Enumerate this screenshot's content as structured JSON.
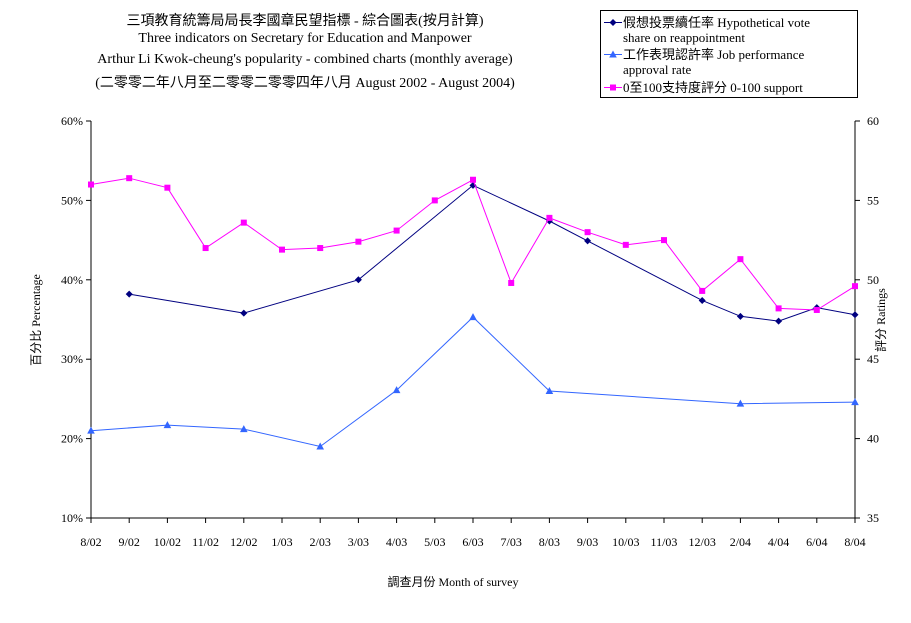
{
  "titles": {
    "line1": "三項教育統籌局局長李國章民望指標 - 綜合圖表(按月計算)",
    "line2": "Three indicators on Secretary for Education and Manpower",
    "line3": "Arthur Li Kwok-cheung's popularity - combined charts (monthly average)",
    "line4": "(二零零二年八月至二零零二零零四年八月 August 2002 - August 2004)"
  },
  "chart_data": {
    "type": "line",
    "title": "三項教育統籌局局長李國章民望指標 - 綜合圖表(按月計算)",
    "xlabel": "調查月份  Month of survey",
    "ylabel_left": "百分比  Percentage",
    "ylabel_right": "評分  Ratings",
    "categories": [
      "8/02",
      "9/02",
      "10/02",
      "11/02",
      "12/02",
      "1/03",
      "2/03",
      "3/03",
      "4/03",
      "5/03",
      "6/03",
      "7/03",
      "8/03",
      "9/03",
      "10/03",
      "11/03",
      "12/03",
      "2/04",
      "4/04",
      "6/04",
      "8/04"
    ],
    "left_axis": {
      "min": 10,
      "max": 60,
      "step": 10,
      "ticks": [
        "10%",
        "20%",
        "30%",
        "40%",
        "50%",
        "60%"
      ]
    },
    "right_axis": {
      "min": 35,
      "max": 60,
      "step": 5,
      "ticks": [
        "35",
        "40",
        "45",
        "50",
        "55",
        "60"
      ]
    },
    "grid": false,
    "legend_position": "top-right",
    "series": [
      {
        "name": "假想投票續任率 Hypothetical vote share on reappointment",
        "name_lines": [
          "假想投票續任率 Hypothetical vote",
          "share on reappointment"
        ],
        "axis": "left",
        "color": "#000080",
        "marker": "diamond",
        "values": [
          null,
          38.2,
          null,
          null,
          35.8,
          null,
          null,
          40.0,
          null,
          null,
          51.9,
          null,
          47.4,
          44.9,
          null,
          null,
          37.4,
          35.4,
          34.8,
          36.5,
          35.6
        ]
      },
      {
        "name": "工作表現認許率 Job performance approval rate",
        "name_lines": [
          "工作表現認許率 Job performance",
          "approval rate"
        ],
        "axis": "left",
        "color": "#3366FF",
        "marker": "triangle",
        "values": [
          21.0,
          null,
          21.7,
          null,
          21.2,
          null,
          19.0,
          null,
          26.1,
          null,
          35.3,
          null,
          26.0,
          null,
          null,
          null,
          null,
          24.4,
          null,
          null,
          24.6
        ]
      },
      {
        "name": "0至100支持度評分 0-100 support",
        "name_lines": [
          "0至100支持度評分 0-100 support"
        ],
        "axis": "right",
        "color": "#FF00FF",
        "marker": "square",
        "values": [
          56.0,
          56.4,
          55.8,
          52.0,
          53.6,
          51.9,
          52.0,
          52.4,
          53.1,
          55.0,
          56.3,
          49.8,
          53.9,
          53.0,
          52.2,
          52.5,
          49.3,
          51.3,
          48.2,
          48.1,
          49.6
        ]
      }
    ]
  }
}
